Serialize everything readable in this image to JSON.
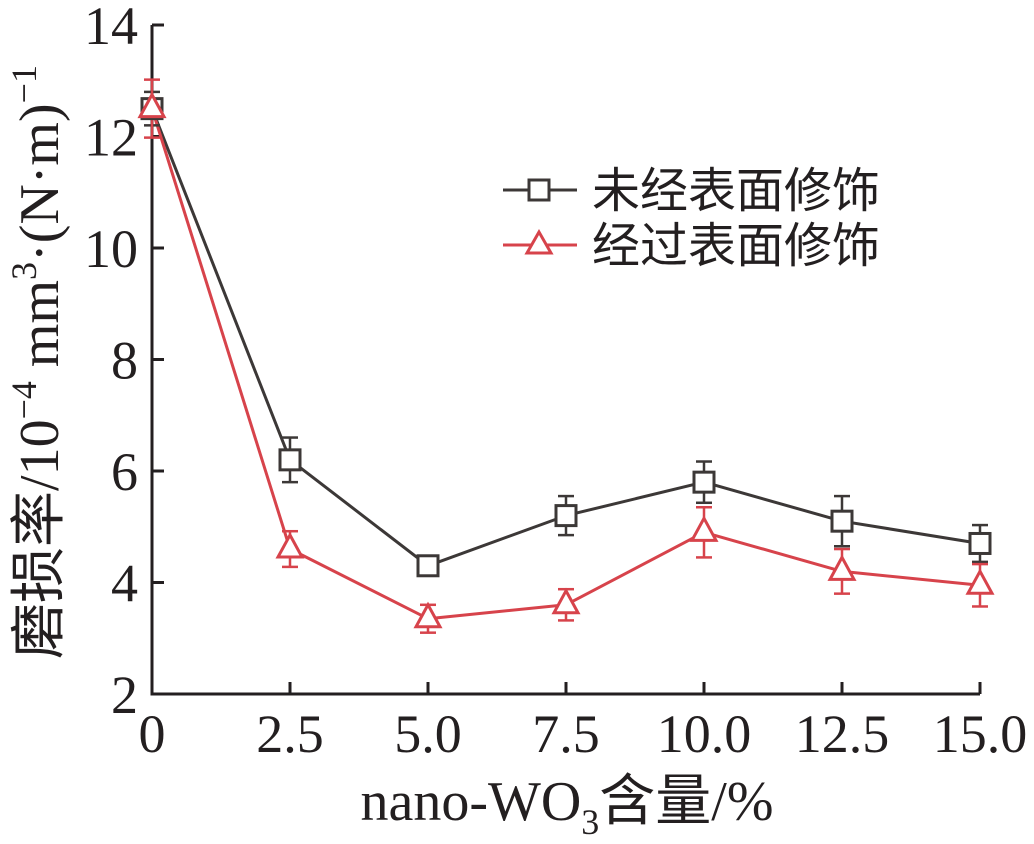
{
  "chart_data": {
    "type": "line",
    "xlim": [
      0,
      15
    ],
    "ylim": [
      2,
      14
    ],
    "x_ticks": [
      0,
      2.5,
      5,
      7.5,
      10,
      12.5,
      15
    ],
    "x_tick_labels": [
      "0",
      "2.5",
      "5.0",
      "7.5",
      "10.0",
      "12.5",
      "15.0"
    ],
    "y_ticks": [
      2,
      4,
      6,
      8,
      10,
      12,
      14
    ],
    "y_tick_labels": [
      "2",
      "4",
      "6",
      "8",
      "10",
      "12",
      "14"
    ],
    "xlabel": [
      "nano-WO",
      "3",
      "含量/%"
    ],
    "ylabel": [
      "磨损率/10",
      "−4",
      " mm",
      "3",
      "·(N·m)",
      "−1"
    ],
    "grid": false,
    "legend_position": "top-right",
    "error_bars": true,
    "series": [
      {
        "name": "未经表面修饰",
        "marker": "square",
        "color": "#3c3837",
        "x": [
          0,
          2.5,
          5,
          7.5,
          10,
          12.5,
          15
        ],
        "y": [
          12.5,
          6.2,
          4.3,
          5.2,
          5.8,
          5.1,
          4.7
        ],
        "error": [
          0.3,
          0.4,
          0.1,
          0.35,
          0.37,
          0.45,
          0.33
        ]
      },
      {
        "name": "经过表面修饰",
        "marker": "triangle",
        "color": "#d7434b",
        "x": [
          0,
          2.5,
          5,
          7.5,
          10,
          12.5,
          15
        ],
        "y": [
          12.5,
          4.6,
          3.35,
          3.6,
          4.9,
          4.2,
          3.95
        ],
        "error": [
          0.52,
          0.32,
          0.25,
          0.28,
          0.45,
          0.4,
          0.38
        ]
      }
    ]
  }
}
